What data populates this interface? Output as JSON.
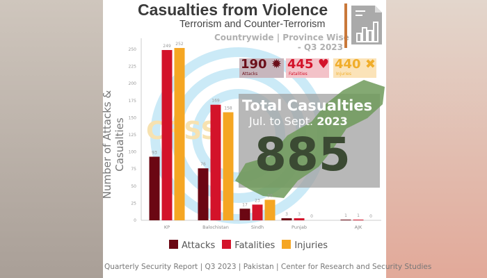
{
  "header": {
    "title": "Casualties from Violence",
    "subtitle": "Terrorism and Counter-Terrorism",
    "scope_line1": "Countrywide | Province Wise",
    "scope_line2": "- Q3 2023"
  },
  "stats": [
    {
      "value": "190",
      "label": "Attacks",
      "color": "#6b0f1a"
    },
    {
      "value": "445",
      "label": "Fatalities",
      "color": "#d3132a"
    },
    {
      "value": "440",
      "label": "Injuries",
      "color": "#f0ad2a"
    }
  ],
  "total": {
    "title": "Total Casualties",
    "period": "Jul. to Sept.",
    "year": "2023",
    "value": "885"
  },
  "watermark": "CRSS",
  "footer": "Quarterly Security Report | Q3 2023 | Pakistan | Center for Research and Security Studies",
  "chart_data": {
    "type": "bar",
    "title": "Casualties from Violence",
    "xlabel": "",
    "ylabel": "Number of Attacks & Casualties",
    "ylim": [
      0,
      260
    ],
    "yticks": [
      0,
      25,
      50,
      75,
      100,
      125,
      150,
      175,
      200,
      225,
      250
    ],
    "categories": [
      "KP",
      "Balochistan",
      "Sindh",
      "Punjab",
      "AJK"
    ],
    "series": [
      {
        "name": "Attacks",
        "color": "#6b0713",
        "values": [
          93,
          76,
          17,
          3,
          1
        ]
      },
      {
        "name": "Fatalities",
        "color": "#d3132a",
        "values": [
          249,
          169,
          23,
          3,
          1
        ]
      },
      {
        "name": "Injuries",
        "color": "#f5a623",
        "values": [
          252,
          158,
          30,
          0,
          0
        ]
      }
    ],
    "legend": "bottom"
  }
}
